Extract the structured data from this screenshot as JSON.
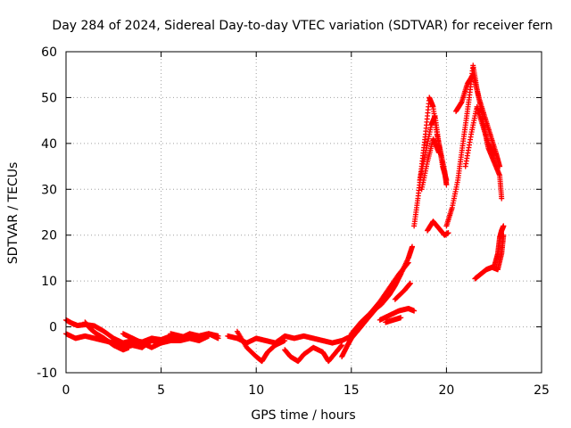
{
  "chart_data": {
    "type": "scatter",
    "title": "Day 284 of 2024, Sidereal Day-to-day VTEC variation (SDTVAR) for receiver fern",
    "xlabel": "GPS time / hours",
    "ylabel": "SDTVAR / TECUs",
    "xlim": [
      0,
      25
    ],
    "ylim": [
      -10,
      60
    ],
    "xticks": [
      "0",
      "5",
      "10",
      "15",
      "20",
      "25"
    ],
    "yticks": [
      "-10",
      "0",
      "10",
      "20",
      "30",
      "40",
      "50",
      "60"
    ],
    "grid": true,
    "marker": "+",
    "color": "#ff0000",
    "series": [
      {
        "name": "SDTVAR",
        "tracks": [
          [
            [
              0.0,
              1.5
            ],
            [
              0.3,
              0.8
            ],
            [
              0.6,
              0.3
            ],
            [
              1.0,
              0.5
            ],
            [
              1.5,
              0.2
            ],
            [
              2.0,
              -1.0
            ],
            [
              2.5,
              -2.5
            ],
            [
              3.0,
              -3.5
            ],
            [
              3.5,
              -3.0
            ],
            [
              4.0,
              -3.3
            ],
            [
              4.5,
              -2.5
            ],
            [
              5.0,
              -2.8
            ],
            [
              5.5,
              -2.0
            ],
            [
              6.0,
              -2.5
            ],
            [
              6.5,
              -1.5
            ],
            [
              7.0,
              -2.0
            ],
            [
              7.5,
              -1.5
            ],
            [
              8.0,
              -2.5
            ]
          ],
          [
            [
              0.0,
              -1.5
            ],
            [
              0.5,
              -2.5
            ],
            [
              1.0,
              -2.0
            ],
            [
              1.5,
              -2.5
            ],
            [
              2.0,
              -3.0
            ],
            [
              2.5,
              -3.5
            ],
            [
              3.0,
              -4.5
            ],
            [
              3.5,
              -4.0
            ],
            [
              4.0,
              -4.5
            ],
            [
              4.5,
              -3.0
            ],
            [
              5.0,
              -3.5
            ],
            [
              5.5,
              -3.0
            ],
            [
              6.0,
              -3.0
            ],
            [
              6.5,
              -2.5
            ],
            [
              7.0,
              -3.0
            ],
            [
              7.5,
              -2.0
            ]
          ],
          [
            [
              1.0,
              1.0
            ],
            [
              1.3,
              -0.5
            ],
            [
              1.6,
              -1.5
            ],
            [
              2.0,
              -2.5
            ],
            [
              2.5,
              -4.0
            ],
            [
              3.0,
              -5.0
            ],
            [
              3.3,
              -4.5
            ]
          ],
          [
            [
              3.0,
              -1.5
            ],
            [
              3.5,
              -2.5
            ],
            [
              4.0,
              -3.5
            ],
            [
              4.5,
              -4.5
            ],
            [
              5.0,
              -3.5
            ]
          ],
          [
            [
              5.5,
              -1.5
            ],
            [
              6.0,
              -2.0
            ],
            [
              6.5,
              -2.5
            ],
            [
              7.0,
              -2.0
            ],
            [
              7.5,
              -1.5
            ],
            [
              8.0,
              -2.0
            ]
          ],
          [
            [
              8.5,
              -2.0
            ],
            [
              9.0,
              -2.5
            ],
            [
              9.5,
              -3.5
            ],
            [
              10.0,
              -2.5
            ],
            [
              10.5,
              -3.0
            ],
            [
              11.0,
              -3.5
            ],
            [
              11.5,
              -2.0
            ],
            [
              12.0,
              -2.5
            ],
            [
              12.5,
              -2.0
            ],
            [
              13.0,
              -2.5
            ],
            [
              13.5,
              -3.0
            ],
            [
              14.0,
              -3.5
            ],
            [
              14.5,
              -3.0
            ],
            [
              15.0,
              -2.0
            ],
            [
              15.3,
              -1.0
            ]
          ],
          [
            [
              9.0,
              -1.0
            ],
            [
              9.5,
              -4.5
            ],
            [
              10.0,
              -6.5
            ],
            [
              10.3,
              -7.5
            ],
            [
              10.6,
              -5.5
            ],
            [
              11.0,
              -4.0
            ],
            [
              11.5,
              -3.0
            ]
          ],
          [
            [
              11.5,
              -5.0
            ],
            [
              11.8,
              -6.5
            ],
            [
              12.2,
              -7.5
            ],
            [
              12.5,
              -6.0
            ],
            [
              13.0,
              -4.5
            ],
            [
              13.5,
              -5.5
            ],
            [
              13.8,
              -7.5
            ],
            [
              14.2,
              -5.5
            ],
            [
              14.5,
              -4.0
            ]
          ],
          [
            [
              14.5,
              -6.5
            ],
            [
              14.8,
              -4.0
            ],
            [
              15.0,
              -2.5
            ],
            [
              15.3,
              -1.0
            ],
            [
              15.6,
              0.5
            ],
            [
              16.0,
              2.5
            ],
            [
              16.3,
              4.0
            ],
            [
              16.6,
              5.0
            ],
            [
              17.0,
              7.0
            ],
            [
              17.3,
              9.0
            ],
            [
              17.6,
              11.5
            ],
            [
              18.0,
              15.0
            ],
            [
              18.2,
              17.5
            ]
          ],
          [
            [
              15.0,
              -1.5
            ],
            [
              15.5,
              1.0
            ],
            [
              16.0,
              3.0
            ],
            [
              16.5,
              5.5
            ],
            [
              17.0,
              8.5
            ],
            [
              17.5,
              11.5
            ],
            [
              18.0,
              14.0
            ]
          ],
          [
            [
              16.5,
              1.5
            ],
            [
              17.0,
              2.5
            ],
            [
              17.5,
              3.5
            ],
            [
              18.0,
              4.0
            ],
            [
              18.3,
              3.5
            ]
          ],
          [
            [
              16.8,
              1.0
            ],
            [
              17.2,
              1.5
            ],
            [
              17.6,
              2.0
            ]
          ],
          [
            [
              17.3,
              6.0
            ],
            [
              17.8,
              8.0
            ],
            [
              18.1,
              9.5
            ]
          ],
          [
            [
              18.3,
              22.0
            ],
            [
              18.5,
              28.0
            ],
            [
              18.7,
              35.0
            ],
            [
              18.9,
              42.0
            ],
            [
              19.1,
              50.0
            ],
            [
              19.3,
              48.0
            ],
            [
              19.5,
              42.0
            ],
            [
              19.7,
              38.0
            ],
            [
              19.9,
              34.0
            ],
            [
              20.0,
              31.0
            ]
          ],
          [
            [
              18.6,
              32.0
            ],
            [
              18.9,
              38.0
            ],
            [
              19.2,
              44.0
            ],
            [
              19.4,
              46.0
            ],
            [
              19.6,
              40.0
            ],
            [
              19.8,
              35.0
            ],
            [
              20.0,
              32.0
            ]
          ],
          [
            [
              18.7,
              30.0
            ],
            [
              19.0,
              36.0
            ],
            [
              19.3,
              41.0
            ],
            [
              19.6,
              38.0
            ]
          ],
          [
            [
              19.0,
              21.0
            ],
            [
              19.3,
              23.0
            ],
            [
              19.6,
              21.5
            ],
            [
              19.9,
              20.0
            ],
            [
              20.1,
              20.5
            ]
          ],
          [
            [
              20.0,
              22.0
            ],
            [
              20.3,
              26.0
            ],
            [
              20.6,
              32.0
            ],
            [
              20.8,
              38.0
            ],
            [
              21.0,
              44.0
            ],
            [
              21.2,
              50.0
            ],
            [
              21.4,
              57.0
            ],
            [
              21.6,
              52.0
            ],
            [
              21.8,
              48.0
            ],
            [
              22.0,
              43.0
            ],
            [
              22.2,
              39.0
            ],
            [
              22.5,
              36.0
            ],
            [
              22.8,
              33.0
            ],
            [
              22.9,
              28.0
            ]
          ],
          [
            [
              20.5,
              47.0
            ],
            [
              20.8,
              49.0
            ],
            [
              21.1,
              53.0
            ],
            [
              21.4,
              55.0
            ],
            [
              21.7,
              50.0
            ],
            [
              22.0,
              46.0
            ],
            [
              22.3,
              42.0
            ],
            [
              22.6,
              38.0
            ],
            [
              22.8,
              35.0
            ]
          ],
          [
            [
              21.0,
              35.0
            ],
            [
              21.3,
              42.0
            ],
            [
              21.6,
              48.0
            ],
            [
              21.9,
              44.0
            ],
            [
              22.2,
              40.0
            ],
            [
              22.5,
              37.5
            ]
          ],
          [
            [
              21.5,
              10.5
            ],
            [
              21.8,
              11.5
            ],
            [
              22.1,
              12.5
            ],
            [
              22.4,
              13.0
            ],
            [
              22.7,
              12.5
            ],
            [
              22.9,
              16.0
            ],
            [
              23.0,
              20.0
            ]
          ],
          [
            [
              22.5,
              13.0
            ],
            [
              22.7,
              16.0
            ],
            [
              22.8,
              19.5
            ],
            [
              22.9,
              21.0
            ],
            [
              23.0,
              22.0
            ]
          ]
        ]
      }
    ]
  }
}
